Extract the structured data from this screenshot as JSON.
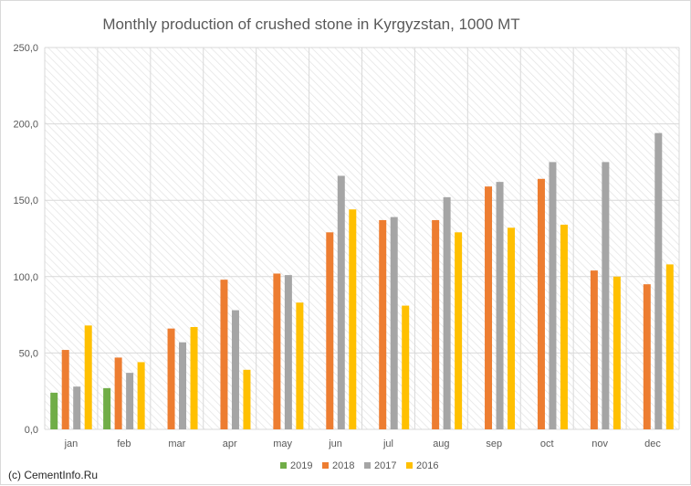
{
  "chart_data": {
    "type": "bar",
    "title": "Monthly production of crushed stone in Kyrgyzstan, 1000 MT",
    "xlabel": "",
    "ylabel": "",
    "ylim": [
      0,
      250
    ],
    "y_ticks": [
      "0,0",
      "50,0",
      "100,0",
      "150,0",
      "200,0",
      "250,0"
    ],
    "grid": true,
    "legend_position": "bottom",
    "categories": [
      "jan",
      "feb",
      "mar",
      "apr",
      "may",
      "jun",
      "jul",
      "aug",
      "sep",
      "oct",
      "nov",
      "dec"
    ],
    "series": [
      {
        "name": "2019",
        "color": "#70ad47",
        "values": [
          24,
          27,
          null,
          null,
          null,
          null,
          null,
          null,
          null,
          null,
          null,
          null
        ]
      },
      {
        "name": "2018",
        "color": "#ed7d31",
        "values": [
          52,
          47,
          66,
          98,
          102,
          129,
          137,
          137,
          159,
          164,
          104,
          95
        ]
      },
      {
        "name": "2017",
        "color": "#a5a5a5",
        "values": [
          28,
          37,
          57,
          78,
          101,
          166,
          139,
          152,
          162,
          175,
          175,
          194
        ]
      },
      {
        "name": "2016",
        "color": "#ffc000",
        "values": [
          68,
          44,
          67,
          39,
          83,
          144,
          81,
          129,
          132,
          134,
          100,
          108
        ]
      }
    ]
  },
  "footer": {
    "credit": "(c) CementInfo.Ru"
  }
}
